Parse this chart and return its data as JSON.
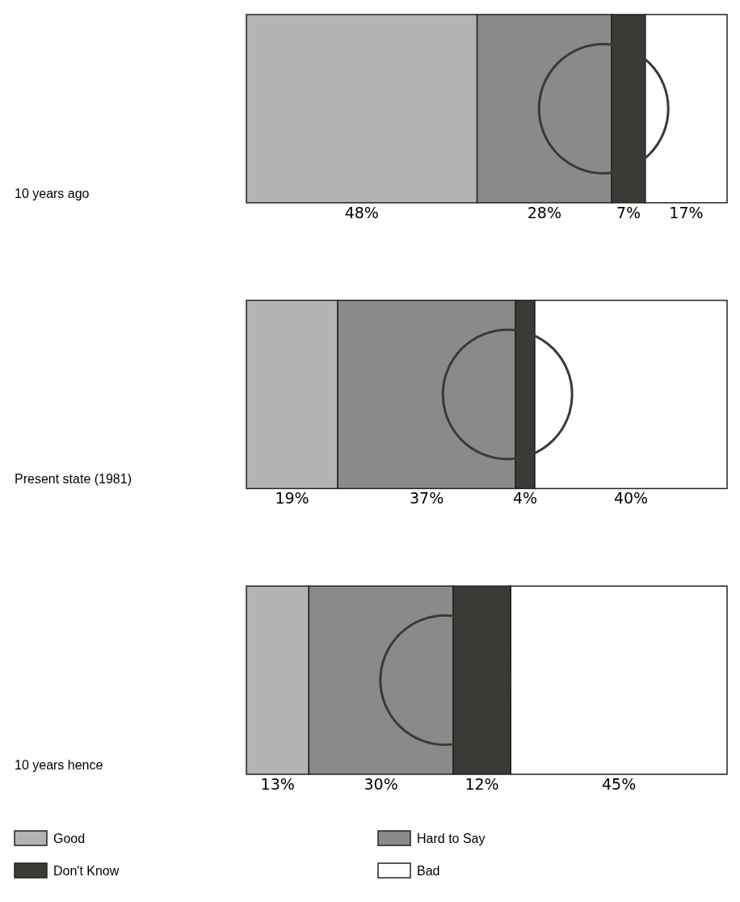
{
  "chart_data": {
    "type": "bar",
    "orientation": "horizontal",
    "stacked": true,
    "categories": [
      "10 years ago",
      "Present state (1981)",
      "10 years hence"
    ],
    "series": [
      {
        "name": "Good",
        "color": "#b3b3b3",
        "values": [
          48,
          19,
          13
        ],
        "value_labels": [
          "48%",
          "19%",
          "13%"
        ]
      },
      {
        "name": "Hard to Say",
        "color": "#8a8a8a",
        "values": [
          28,
          37,
          30
        ],
        "value_labels": [
          "28%",
          "37%",
          "30%"
        ]
      },
      {
        "name": "Don't Know",
        "color": "#3a3a36",
        "values": [
          7,
          4,
          12
        ],
        "value_labels": [
          "7%",
          "4%",
          "12%"
        ]
      },
      {
        "name": "Bad",
        "color": "#ffffff",
        "values": [
          17,
          40,
          45
        ],
        "value_labels": [
          "17%",
          "40%",
          "45%"
        ]
      }
    ],
    "tick_labels": false,
    "legend": "bottom"
  }
}
